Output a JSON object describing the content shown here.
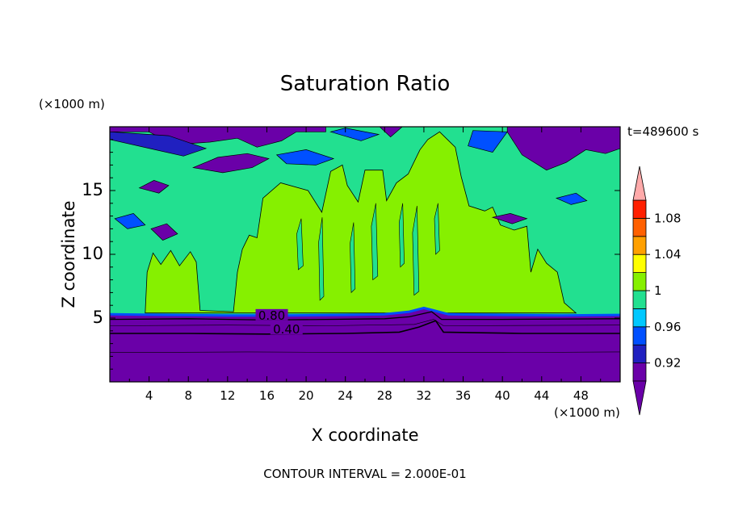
{
  "chart_data": {
    "type": "heatmap",
    "title": "Saturation Ratio",
    "xlabel": "X coordinate",
    "ylabel": "Z coordinate",
    "x_unit": "(×1000 m)",
    "y_unit": "(×1000 m)",
    "xlim": [
      0,
      52
    ],
    "ylim": [
      0,
      20
    ],
    "x_ticks": [
      4,
      8,
      12,
      16,
      20,
      24,
      28,
      32,
      36,
      40,
      44,
      48
    ],
    "x_tick_labels": [
      "4",
      "8",
      "12",
      "16",
      "20",
      "24",
      "28",
      "32",
      "36",
      "40",
      "44",
      "48"
    ],
    "y_ticks": [
      5,
      10,
      15
    ],
    "y_tick_labels": [
      "5",
      "10",
      "15"
    ],
    "time_label": "t=489600 s",
    "footer": "CONTOUR INTERVAL = 2.000E-01",
    "contour_labels": [
      {
        "text": "0.80",
        "x": 16.5,
        "z": 5.2
      },
      {
        "text": "0.40",
        "x": 18.0,
        "z": 4.1
      }
    ],
    "colorbar": {
      "levels": [
        0.9,
        0.92,
        0.94,
        0.96,
        0.98,
        1.0,
        1.02,
        1.04,
        1.06,
        1.08,
        1.1
      ],
      "tick_labels": [
        "0.92",
        "0.96",
        "1",
        "1.04",
        "1.08"
      ],
      "tick_values": [
        0.92,
        0.96,
        1.0,
        1.04,
        1.08
      ],
      "colors": [
        "#6a00a8",
        "#2020c0",
        "#0050ff",
        "#00c8ff",
        "#22e090",
        "#86f000",
        "#ffff00",
        "#ffa000",
        "#ff6000",
        "#ff2000"
      ],
      "under_color": "#6a00a8",
      "over_color": "#ffaaaa"
    },
    "regions": [
      {
        "level": "below 0.92",
        "color": "#6a00a8",
        "z_range": [
          0,
          5.2
        ]
      },
      {
        "level": "0.98-1.0",
        "color": "#22e090",
        "z_range": [
          5.2,
          19.5
        ]
      },
      {
        "level": "1.0-1.02",
        "color": "#86f000",
        "z_range": [
          5.4,
          18.5
        ]
      }
    ]
  }
}
